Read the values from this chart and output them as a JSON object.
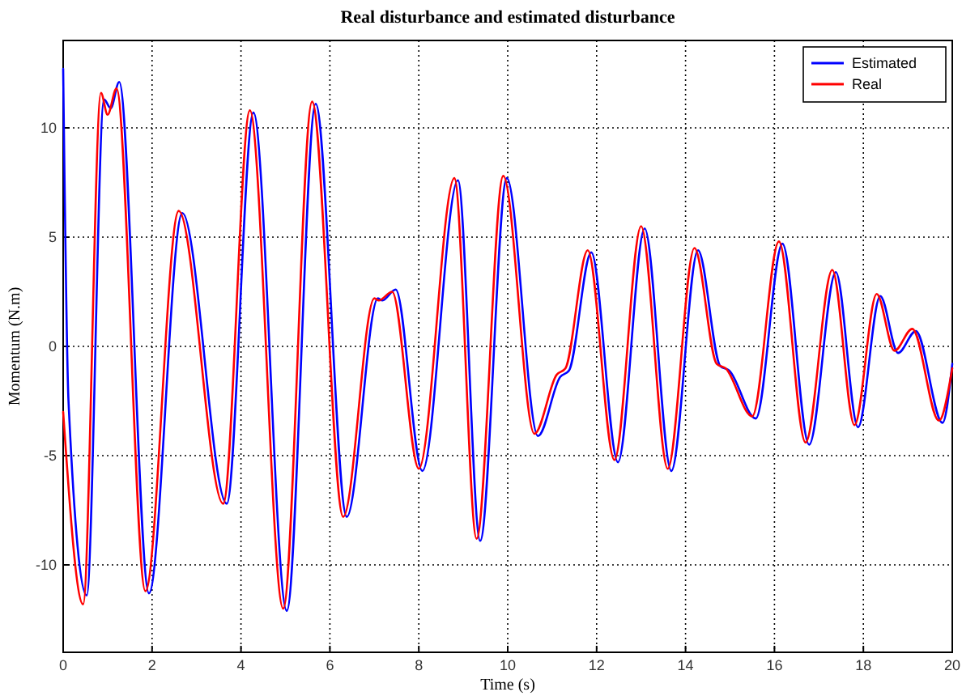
{
  "chart_data": {
    "type": "line",
    "title": "Real disturbance and estimated disturbance",
    "xlabel": "Time (s)",
    "ylabel": "Momentum (N.m)",
    "xlim": [
      0,
      20
    ],
    "ylim": [
      -14,
      14
    ],
    "xticks": [
      0,
      2,
      4,
      6,
      8,
      10,
      12,
      14,
      16,
      18,
      20
    ],
    "yticks": [
      -10,
      -5,
      0,
      5,
      10
    ],
    "grid": true,
    "legend": "top right",
    "line_style": "solid",
    "series": [
      {
        "name": "Estimated",
        "color": "#0000ff",
        "x": [
          0,
          0.12,
          0.53,
          0.92,
          1.07,
          1.26,
          1.93,
          2.68,
          3.68,
          4.28,
          5.03,
          5.68,
          6.38,
          7.08,
          7.18,
          7.48,
          8.08,
          8.88,
          9.38,
          9.98,
          10.68,
          11.18,
          11.38,
          11.88,
          12.48,
          13.08,
          13.68,
          14.28,
          14.78,
          14.98,
          15.58,
          16.18,
          16.78,
          17.38,
          17.88,
          18.38,
          18.78,
          19.18,
          19.78,
          20
        ],
        "values": [
          12.7,
          -2.5,
          -11.4,
          11.3,
          10.9,
          12.1,
          -11.3,
          6.1,
          -7.2,
          10.7,
          -12.1,
          11.1,
          -7.8,
          2.2,
          2.1,
          2.6,
          -5.7,
          7.6,
          -8.9,
          7.7,
          -4.1,
          -1.4,
          -1.1,
          4.3,
          -5.3,
          5.4,
          -5.7,
          4.4,
          -0.9,
          -1.1,
          -3.3,
          4.7,
          -4.5,
          3.4,
          -3.7,
          2.3,
          -0.3,
          0.7,
          -3.5,
          -0.8
        ]
      },
      {
        "name": "Real",
        "color": "#ff0000",
        "x": [
          0,
          0.45,
          0.85,
          1.0,
          1.2,
          1.85,
          2.6,
          3.6,
          4.2,
          4.95,
          5.6,
          6.3,
          7.0,
          7.1,
          7.4,
          8.0,
          8.8,
          9.3,
          9.9,
          10.6,
          11.1,
          11.3,
          11.8,
          12.4,
          13.0,
          13.6,
          14.2,
          14.7,
          14.9,
          15.5,
          16.1,
          16.7,
          17.3,
          17.8,
          18.3,
          18.7,
          19.1,
          19.7,
          20
        ],
        "values": [
          -3,
          -11.8,
          11.6,
          10.6,
          11.8,
          -11.2,
          6.2,
          -7.2,
          10.8,
          -12,
          11.2,
          -7.8,
          2.2,
          2.1,
          2.5,
          -5.6,
          7.7,
          -8.8,
          7.8,
          -4,
          -1.3,
          -1,
          4.4,
          -5.2,
          5.5,
          -5.6,
          4.5,
          -0.8,
          -1,
          -3.2,
          4.8,
          -4.4,
          3.5,
          -3.6,
          2.4,
          -0.2,
          0.8,
          -3.4,
          -1
        ]
      }
    ]
  }
}
